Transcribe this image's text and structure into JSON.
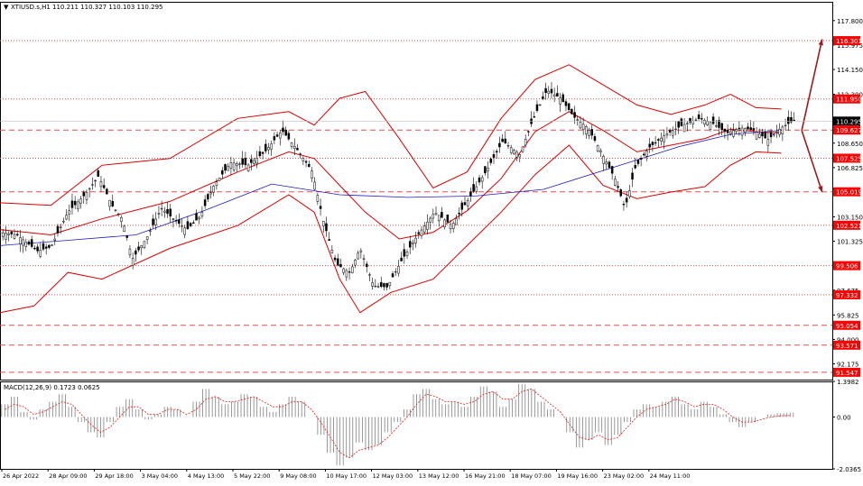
{
  "header": {
    "title": "XTIUSD.s,H1  110.211 110.327 110.103 110.295",
    "arrow_glyph": "▼"
  },
  "colors": {
    "background": "#ffffff",
    "axis": "#000000",
    "bollinger": "#dd0000",
    "moving_average": "#1c1cc8",
    "level_line": "#e05050",
    "level_label_bg": "#ff0000",
    "level_label_text": "#ffffff",
    "current_price_bg": "#000000",
    "forecast_arrow": "#9b1c1c",
    "macd_hist": "#808080",
    "macd_signal": "#e02020",
    "candle": "#000000"
  },
  "chart_data": [
    {
      "type": "candlestick",
      "title": "XTIUSD.s,H1",
      "symbol": "XTIUSD.s",
      "timeframe": "H1",
      "ohlc_header": {
        "open": 110.211,
        "high": 110.327,
        "low": 110.103,
        "close": 110.295
      },
      "current_price": "110.295",
      "ylim": [
        91.0,
        119.2
      ],
      "y_ticks": [
        "117.800",
        "115.975",
        "114.150",
        "112.300",
        "108.650",
        "106.825",
        "103.150",
        "101.325",
        "97.675",
        "95.825",
        "94.000",
        "92.175"
      ],
      "x_ticks": [
        "26 Apr 2022",
        "28 Apr 09:00",
        "29 Apr 18:00",
        "3 May 04:00",
        "4 May 13:00",
        "5 May 22:00",
        "9 May 08:00",
        "10 May 17:00",
        "12 May 03:00",
        "13 May 12:00",
        "16 May 21:00",
        "18 May 07:00",
        "19 May 16:00",
        "23 May 02:00",
        "24 May 11:00"
      ],
      "price_path": [
        {
          "x": 0,
          "y": 102.0
        },
        {
          "x": 10,
          "y": 101.8
        },
        {
          "x": 22,
          "y": 100.6
        },
        {
          "x": 30,
          "y": 100.9
        },
        {
          "x": 40,
          "y": 103.5
        },
        {
          "x": 50,
          "y": 104.8
        },
        {
          "x": 58,
          "y": 106.2
        },
        {
          "x": 66,
          "y": 104.0
        },
        {
          "x": 72,
          "y": 103.0
        },
        {
          "x": 78,
          "y": 100.0
        },
        {
          "x": 86,
          "y": 101.5
        },
        {
          "x": 95,
          "y": 103.8
        },
        {
          "x": 102,
          "y": 103.0
        },
        {
          "x": 110,
          "y": 102.2
        },
        {
          "x": 118,
          "y": 103.2
        },
        {
          "x": 126,
          "y": 105.5
        },
        {
          "x": 136,
          "y": 107.2
        },
        {
          "x": 146,
          "y": 107.0
        },
        {
          "x": 156,
          "y": 108.0
        },
        {
          "x": 166,
          "y": 109.6
        },
        {
          "x": 176,
          "y": 108.0
        },
        {
          "x": 184,
          "y": 106.5
        },
        {
          "x": 190,
          "y": 103.0
        },
        {
          "x": 198,
          "y": 99.6
        },
        {
          "x": 206,
          "y": 99.0
        },
        {
          "x": 212,
          "y": 100.8
        },
        {
          "x": 220,
          "y": 98.0
        },
        {
          "x": 228,
          "y": 97.9
        },
        {
          "x": 236,
          "y": 99.8
        },
        {
          "x": 246,
          "y": 101.8
        },
        {
          "x": 256,
          "y": 103.5
        },
        {
          "x": 266,
          "y": 102.5
        },
        {
          "x": 276,
          "y": 104.5
        },
        {
          "x": 286,
          "y": 106.5
        },
        {
          "x": 296,
          "y": 108.8
        },
        {
          "x": 306,
          "y": 107.8
        },
        {
          "x": 314,
          "y": 110.5
        },
        {
          "x": 322,
          "y": 112.6
        },
        {
          "x": 330,
          "y": 112.0
        },
        {
          "x": 338,
          "y": 110.6
        },
        {
          "x": 346,
          "y": 109.8
        },
        {
          "x": 354,
          "y": 108.0
        },
        {
          "x": 362,
          "y": 106.0
        },
        {
          "x": 368,
          "y": 103.8
        },
        {
          "x": 374,
          "y": 106.8
        },
        {
          "x": 382,
          "y": 108.3
        },
        {
          "x": 392,
          "y": 109.3
        },
        {
          "x": 402,
          "y": 110.0
        },
        {
          "x": 412,
          "y": 110.5
        },
        {
          "x": 420,
          "y": 110.1
        },
        {
          "x": 428,
          "y": 109.4
        },
        {
          "x": 436,
          "y": 109.8
        },
        {
          "x": 444,
          "y": 109.6
        },
        {
          "x": 452,
          "y": 108.9
        },
        {
          "x": 460,
          "y": 109.8
        },
        {
          "x": 468,
          "y": 110.4
        }
      ],
      "bollinger_upper": [
        {
          "x": 0,
          "y": 104.2
        },
        {
          "x": 30,
          "y": 104.0
        },
        {
          "x": 60,
          "y": 107.0
        },
        {
          "x": 100,
          "y": 107.5
        },
        {
          "x": 140,
          "y": 110.5
        },
        {
          "x": 170,
          "y": 111.0
        },
        {
          "x": 185,
          "y": 110.0
        },
        {
          "x": 200,
          "y": 112.0
        },
        {
          "x": 215,
          "y": 112.5
        },
        {
          "x": 235,
          "y": 109.0
        },
        {
          "x": 255,
          "y": 105.3
        },
        {
          "x": 275,
          "y": 106.5
        },
        {
          "x": 295,
          "y": 110.5
        },
        {
          "x": 315,
          "y": 113.4
        },
        {
          "x": 335,
          "y": 114.5
        },
        {
          "x": 355,
          "y": 113.0
        },
        {
          "x": 375,
          "y": 111.5
        },
        {
          "x": 395,
          "y": 110.8
        },
        {
          "x": 415,
          "y": 111.5
        },
        {
          "x": 430,
          "y": 112.3
        },
        {
          "x": 445,
          "y": 111.3
        },
        {
          "x": 460,
          "y": 111.2
        }
      ],
      "bollinger_middle": [
        {
          "x": 0,
          "y": 102.2
        },
        {
          "x": 30,
          "y": 101.8
        },
        {
          "x": 60,
          "y": 103.0
        },
        {
          "x": 100,
          "y": 104.3
        },
        {
          "x": 140,
          "y": 106.5
        },
        {
          "x": 170,
          "y": 108.0
        },
        {
          "x": 185,
          "y": 107.5
        },
        {
          "x": 200,
          "y": 105.5
        },
        {
          "x": 215,
          "y": 103.5
        },
        {
          "x": 235,
          "y": 101.5
        },
        {
          "x": 255,
          "y": 102.0
        },
        {
          "x": 275,
          "y": 103.6
        },
        {
          "x": 295,
          "y": 106.0
        },
        {
          "x": 315,
          "y": 109.5
        },
        {
          "x": 335,
          "y": 111.0
        },
        {
          "x": 355,
          "y": 109.6
        },
        {
          "x": 375,
          "y": 108.0
        },
        {
          "x": 395,
          "y": 108.5
        },
        {
          "x": 415,
          "y": 109.0
        },
        {
          "x": 430,
          "y": 109.7
        },
        {
          "x": 445,
          "y": 109.5
        },
        {
          "x": 460,
          "y": 109.4
        }
      ],
      "bollinger_lower": [
        {
          "x": 0,
          "y": 96.0
        },
        {
          "x": 20,
          "y": 96.5
        },
        {
          "x": 40,
          "y": 99.0
        },
        {
          "x": 60,
          "y": 98.5
        },
        {
          "x": 100,
          "y": 100.8
        },
        {
          "x": 140,
          "y": 102.5
        },
        {
          "x": 170,
          "y": 104.8
        },
        {
          "x": 185,
          "y": 103.5
        },
        {
          "x": 200,
          "y": 98.5
        },
        {
          "x": 212,
          "y": 96.0
        },
        {
          "x": 230,
          "y": 97.5
        },
        {
          "x": 255,
          "y": 98.5
        },
        {
          "x": 275,
          "y": 101.0
        },
        {
          "x": 295,
          "y": 103.5
        },
        {
          "x": 315,
          "y": 106.3
        },
        {
          "x": 335,
          "y": 108.5
        },
        {
          "x": 355,
          "y": 105.5
        },
        {
          "x": 375,
          "y": 104.5
        },
        {
          "x": 395,
          "y": 105.0
        },
        {
          "x": 415,
          "y": 105.4
        },
        {
          "x": 430,
          "y": 107.0
        },
        {
          "x": 445,
          "y": 108.0
        },
        {
          "x": 460,
          "y": 107.9
        }
      ],
      "moving_average": [
        {
          "x": 0,
          "y": 101.0
        },
        {
          "x": 40,
          "y": 101.4
        },
        {
          "x": 80,
          "y": 101.8
        },
        {
          "x": 120,
          "y": 103.6
        },
        {
          "x": 160,
          "y": 105.6
        },
        {
          "x": 200,
          "y": 104.8
        },
        {
          "x": 240,
          "y": 104.6
        },
        {
          "x": 280,
          "y": 104.7
        },
        {
          "x": 320,
          "y": 105.2
        },
        {
          "x": 360,
          "y": 106.8
        },
        {
          "x": 400,
          "y": 108.4
        },
        {
          "x": 430,
          "y": 109.3
        },
        {
          "x": 460,
          "y": 109.6
        }
      ],
      "horizontal_levels": [
        {
          "label": "116.301",
          "value": 116.301,
          "style": "dotted"
        },
        {
          "label": "111.950",
          "value": 111.95,
          "style": "dotted"
        },
        {
          "label": "109.627",
          "value": 109.627,
          "style": "dashed"
        },
        {
          "label": "107.525",
          "value": 107.525,
          "style": "dotted"
        },
        {
          "label": "105.019",
          "value": 105.019,
          "style": "dashed"
        },
        {
          "label": "102.521",
          "value": 102.521,
          "style": "dotted"
        },
        {
          "label": "99.506",
          "value": 99.506,
          "style": "dotted"
        },
        {
          "label": "97.332",
          "value": 97.332,
          "style": "dotted"
        },
        {
          "label": "95.054",
          "value": 95.054,
          "style": "dashed"
        },
        {
          "label": "93.571",
          "value": 93.571,
          "style": "dashed"
        },
        {
          "label": "91.547",
          "value": 91.547,
          "style": "dashed"
        }
      ],
      "forecast_arrows": [
        {
          "from": {
            "x": 472,
            "y": 109.6
          },
          "to": {
            "x": 484,
            "y": 116.4
          }
        },
        {
          "from": {
            "x": 472,
            "y": 109.6
          },
          "to": {
            "x": 484,
            "y": 105.0
          }
        }
      ]
    },
    {
      "type": "bar",
      "title": "MACD(12,26,9) 0.1723 0.0625",
      "indicator": "MACD",
      "parameters": [
        12,
        26,
        9
      ],
      "main_value": 0.1723,
      "signal_value": 0.0625,
      "ylim": [
        -2.0365,
        1.3982
      ],
      "y_ticks": [
        "1.3982",
        "0.00",
        "-2.0365"
      ],
      "histogram": [
        0.5,
        0.8,
        0.2,
        -0.1,
        0.3,
        0.6,
        0.9,
        0.4,
        -0.2,
        -0.6,
        -0.8,
        -0.2,
        0.4,
        0.7,
        0.3,
        -0.1,
        0.1,
        0.4,
        0.3,
        0.0,
        0.6,
        1.1,
        0.8,
        0.5,
        0.6,
        0.9,
        0.8,
        0.4,
        0.2,
        0.5,
        0.8,
        0.6,
        0.0,
        -0.7,
        -1.4,
        -1.9,
        -1.6,
        -1.0,
        -1.3,
        -1.1,
        -0.6,
        -0.2,
        0.3,
        0.9,
        1.1,
        0.7,
        0.5,
        0.6,
        0.4,
        0.8,
        1.2,
        1.0,
        0.4,
        0.7,
        1.3,
        1.1,
        0.6,
        0.3,
        0.0,
        -0.6,
        -1.2,
        -0.9,
        -0.6,
        -1.1,
        -0.7,
        -0.2,
        0.3,
        0.5,
        0.4,
        0.6,
        0.8,
        0.5,
        0.3,
        0.6,
        0.4,
        0.1,
        -0.2,
        -0.4,
        -0.2,
        0.0,
        0.1,
        0.15,
        0.17
      ],
      "signal": [
        0.3,
        0.5,
        0.4,
        0.1,
        0.2,
        0.4,
        0.6,
        0.5,
        0.1,
        -0.3,
        -0.6,
        -0.4,
        0.0,
        0.4,
        0.4,
        0.1,
        0.1,
        0.3,
        0.3,
        0.1,
        0.3,
        0.7,
        0.8,
        0.6,
        0.6,
        0.7,
        0.8,
        0.6,
        0.4,
        0.4,
        0.6,
        0.6,
        0.3,
        -0.2,
        -0.8,
        -1.4,
        -1.6,
        -1.3,
        -1.2,
        -1.1,
        -0.8,
        -0.4,
        0.0,
        0.5,
        0.9,
        0.8,
        0.6,
        0.6,
        0.5,
        0.6,
        0.9,
        1.0,
        0.7,
        0.7,
        1.0,
        1.1,
        0.8,
        0.5,
        0.2,
        -0.3,
        -0.8,
        -0.9,
        -0.7,
        -0.9,
        -0.8,
        -0.4,
        0.0,
        0.3,
        0.4,
        0.5,
        0.7,
        0.6,
        0.4,
        0.5,
        0.5,
        0.3,
        0.0,
        -0.2,
        -0.2,
        -0.1,
        0.0,
        0.05,
        0.06
      ]
    }
  ]
}
